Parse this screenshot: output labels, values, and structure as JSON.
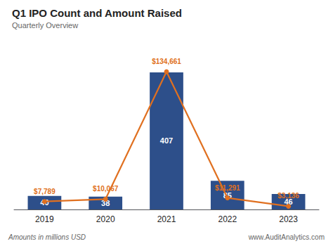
{
  "chart_data": {
    "type": "bar",
    "title": "Q1 IPO Count and Amount Raised",
    "subtitle": "Quarterly Overview",
    "annotations": [
      "Amounts in millions USD",
      "www.AuditAnalytics.com"
    ],
    "categories": [
      "2019",
      "2020",
      "2021",
      "2022",
      "2023"
    ],
    "series": [
      {
        "type": "bar",
        "color": "#2D4F8A",
        "values": [
          40,
          38,
          407,
          85,
          46
        ],
        "data_labels": true
      },
      {
        "type": "line",
        "axis": "y2",
        "color": "#E07020",
        "marker": "circle",
        "values": [
          7789,
          10067,
          134661,
          11291,
          3136
        ],
        "value_labels": [
          "$7,789",
          "$10,067",
          "$134,661",
          "$11,291",
          "$3,136"
        ],
        "data_labels": true
      }
    ],
    "ylim": [
      0,
      480
    ],
    "y2lim": [
      0,
      158000
    ],
    "grid": false,
    "tick_labels": "x"
  }
}
